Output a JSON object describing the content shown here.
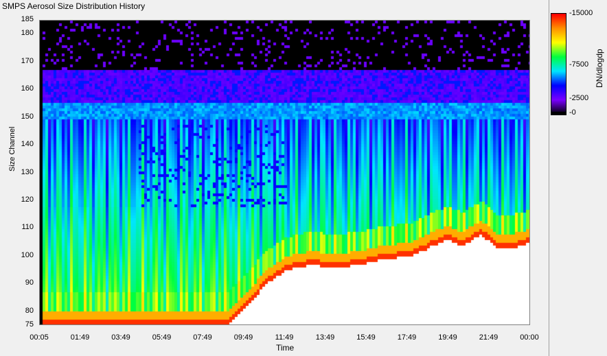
{
  "window": {
    "title": "SMPS Aerosol Size Distribution History"
  },
  "colors": {
    "background": "#f0f0f0",
    "plot_background": "#ffffff"
  },
  "chart_data": {
    "type": "heatmap",
    "title": "SMPS Aerosol Size Distribution History",
    "xlabel": "Time",
    "ylabel": "Size Channel",
    "x_ticks": [
      "00:05",
      "01:49",
      "03:49",
      "05:49",
      "07:49",
      "09:49",
      "11:49",
      "13:49",
      "15:49",
      "17:49",
      "19:49",
      "21:49",
      "00:00"
    ],
    "y_ticks": [
      "185",
      "180",
      "170",
      "160",
      "150",
      "140",
      "130",
      "120",
      "110",
      "100",
      "90",
      "80",
      "75"
    ],
    "ylim": [
      75,
      185
    ],
    "colorbar": {
      "label": "DN/dlogdp",
      "ticks": [
        "15000",
        "7500",
        "2500",
        "0"
      ],
      "range": [
        0,
        15000
      ],
      "colors": [
        "#000000",
        "#7a00ff",
        "#0000ff",
        "#00e5ff",
        "#00ff40",
        "#ffff00",
        "#ff9000",
        "#ff0000"
      ]
    }
  }
}
